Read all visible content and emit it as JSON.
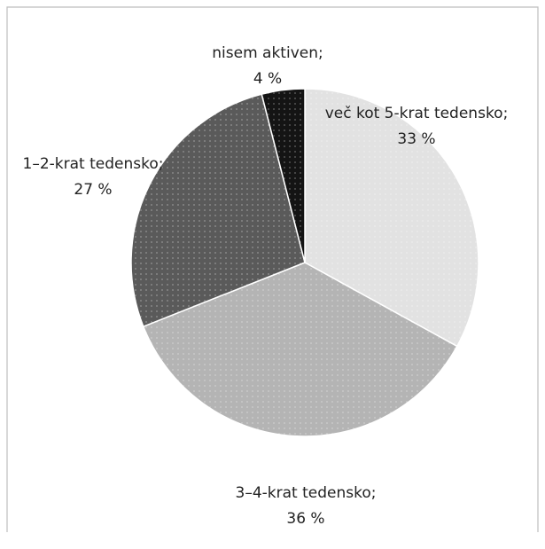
{
  "chart_data": {
    "type": "pie",
    "categories": [
      "več kot 5-krat tedensko;",
      "3–4-krat tedensko;",
      "1–2-krat tedensko;",
      "nisem aktiven;"
    ],
    "values": [
      33,
      36,
      27,
      4
    ],
    "value_labels": [
      "33 %",
      "36 %",
      "27 %",
      "4 %"
    ],
    "colors": [
      "#e2e2e2",
      "#b4b4b4",
      "#5a5a5a",
      "#141414"
    ]
  }
}
